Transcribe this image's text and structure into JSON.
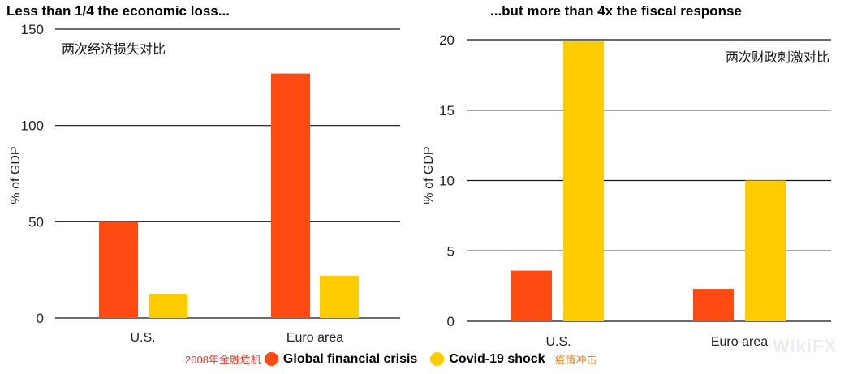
{
  "colors": {
    "gfc": "#FF4A12",
    "covid": "#FFCC00"
  },
  "legend": {
    "gfc_cn": "2008年金融危机",
    "gfc_label": "Global financial crisis",
    "covid_label": "Covid-19 shock",
    "covid_cn": "疫情冲击"
  },
  "watermark": "WikiFX",
  "chart_data": [
    {
      "type": "bar",
      "title": "Less than 1/4 the economic loss...",
      "annotation": "两次经济损失对比",
      "ylabel": "% of GDP",
      "xlabel": "",
      "ylim": [
        0,
        150
      ],
      "yticks": [
        0,
        50,
        100,
        150
      ],
      "categories": [
        "U.S.",
        "Euro area"
      ],
      "series": [
        {
          "name": "Global financial crisis",
          "values": [
            50,
            127
          ]
        },
        {
          "name": "Covid-19 shock",
          "values": [
            12.5,
            22
          ]
        }
      ]
    },
    {
      "type": "bar",
      "title": "...but more than 4x the fiscal response",
      "annotation": "两次财政刺激对比",
      "ylabel": "% of GDP",
      "xlabel": "",
      "ylim": [
        0,
        20
      ],
      "yticks": [
        0,
        5,
        10,
        15,
        20
      ],
      "categories": [
        "U.S.",
        "Euro area"
      ],
      "series": [
        {
          "name": "Global financial crisis",
          "values": [
            3.6,
            2.3
          ]
        },
        {
          "name": "Covid-19 shock",
          "values": [
            19.9,
            10
          ]
        }
      ]
    }
  ]
}
